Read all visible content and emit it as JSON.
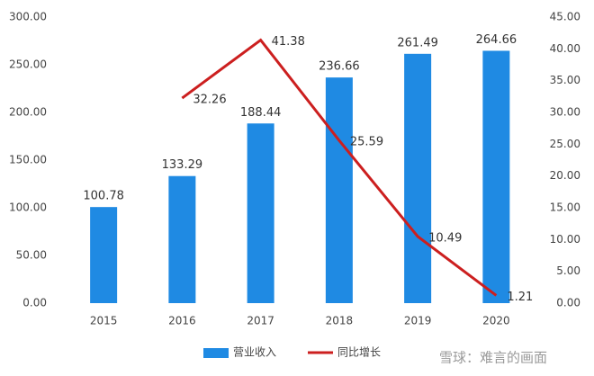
{
  "chart_data": {
    "type": "bar",
    "categories": [
      "2015",
      "2016",
      "2017",
      "2018",
      "2019",
      "2020"
    ],
    "series": [
      {
        "name": "营业收入",
        "type": "bar",
        "color": "#1f8ae3",
        "values": [
          100.78,
          133.29,
          188.44,
          236.66,
          261.49,
          264.66
        ]
      },
      {
        "name": "同比增长",
        "type": "line",
        "axis": "y2",
        "color": "#cc1f1f",
        "values": [
          null,
          32.26,
          41.38,
          25.59,
          10.49,
          1.21
        ]
      }
    ],
    "ylim": [
      0,
      300
    ],
    "yticks": [
      {
        "value": 0,
        "label": "0.00"
      },
      {
        "value": 50,
        "label": "50.00"
      },
      {
        "value": 100,
        "label": "100.00"
      },
      {
        "value": 150,
        "label": "150.00"
      },
      {
        "value": 200,
        "label": "200.00"
      },
      {
        "value": 250,
        "label": "250.00"
      },
      {
        "value": 300,
        "label": "300.00"
      }
    ],
    "y2lim": [
      0,
      45
    ],
    "y2ticks": [
      {
        "value": 0,
        "label": "0.00"
      },
      {
        "value": 5,
        "label": "5.00"
      },
      {
        "value": 10,
        "label": "10.00"
      },
      {
        "value": 15,
        "label": "15.00"
      },
      {
        "value": 20,
        "label": "20.00"
      },
      {
        "value": 25,
        "label": "25.00"
      },
      {
        "value": 30,
        "label": "30.00"
      },
      {
        "value": 35,
        "label": "35.00"
      },
      {
        "value": 40,
        "label": "40.00"
      },
      {
        "value": 45,
        "label": "45.00"
      }
    ],
    "grid": false,
    "legend": "bottom",
    "watermark": "雪球：难言的画面"
  }
}
